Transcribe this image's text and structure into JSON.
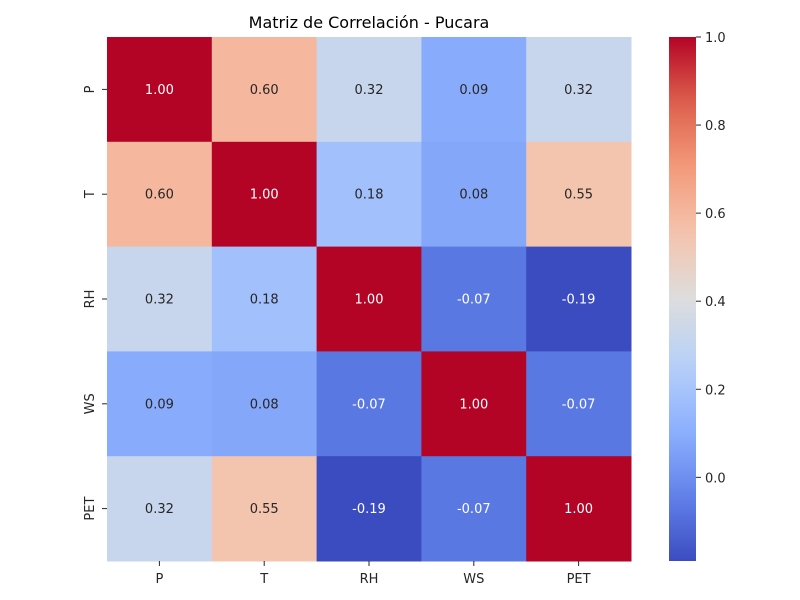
{
  "chart_data": {
    "type": "heatmap",
    "title": "Matriz de Correlación - Pucara",
    "xlabel": "",
    "ylabel": "",
    "x_categories": [
      "P",
      "T",
      "RH",
      "WS",
      "PET"
    ],
    "y_categories": [
      "P",
      "T",
      "RH",
      "WS",
      "PET"
    ],
    "values": [
      [
        1.0,
        0.6,
        0.32,
        0.09,
        0.32
      ],
      [
        0.6,
        1.0,
        0.18,
        0.08,
        0.55
      ],
      [
        0.32,
        0.18,
        1.0,
        -0.07,
        -0.19
      ],
      [
        0.09,
        0.08,
        -0.07,
        1.0,
        -0.07
      ],
      [
        0.32,
        0.55,
        -0.19,
        -0.07,
        1.0
      ]
    ],
    "annotations": [
      [
        "1.00",
        "0.60",
        "0.32",
        "0.09",
        "0.32"
      ],
      [
        "0.60",
        "1.00",
        "0.18",
        "0.08",
        "0.55"
      ],
      [
        "0.32",
        "0.18",
        "1.00",
        "-0.07",
        "-0.19"
      ],
      [
        "0.09",
        "0.08",
        "-0.07",
        "1.00",
        "-0.07"
      ],
      [
        "0.32",
        "0.55",
        "-0.19",
        "-0.07",
        "1.00"
      ]
    ],
    "colormap": "coolwarm",
    "color_range": [
      -0.19,
      1.0
    ],
    "colorbar_ticks": [
      "0.0",
      "0.2",
      "0.4",
      "0.6",
      "0.8",
      "1.0"
    ],
    "colorbar_tick_values": [
      0.0,
      0.2,
      0.4,
      0.6,
      0.8,
      1.0
    ],
    "grid": false
  }
}
